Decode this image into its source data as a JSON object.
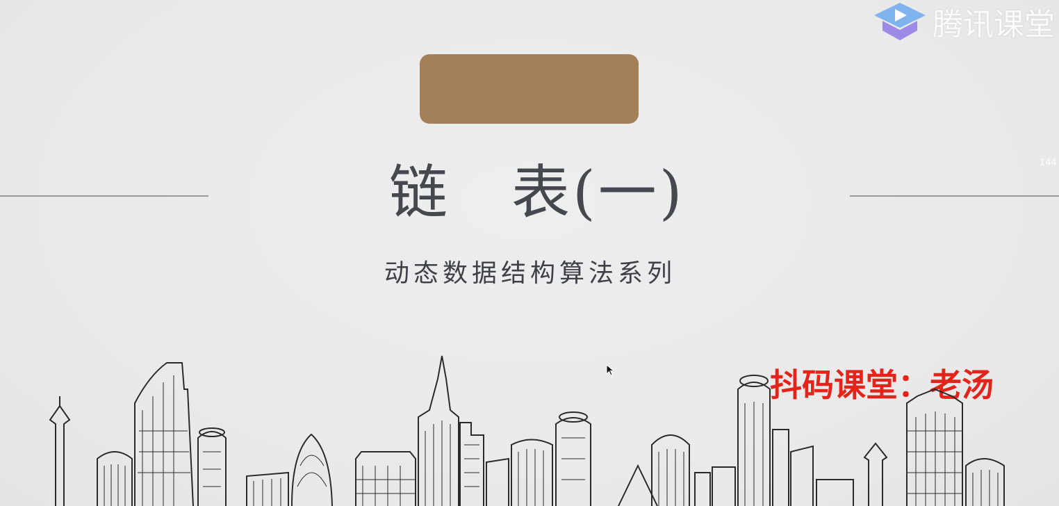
{
  "slide": {
    "title": "链　表(一)",
    "subtitle": "动态数据结构算法系列",
    "author": "抖码课堂：老汤",
    "tag_color": "#a38059",
    "author_color": "#e2241b"
  },
  "overlay": {
    "brand_name": "腾讯课堂",
    "brand_icon": "tencent-classroom-logo-icon",
    "side_number": "144"
  },
  "icons": {
    "cursor": "mouse-cursor-icon"
  }
}
